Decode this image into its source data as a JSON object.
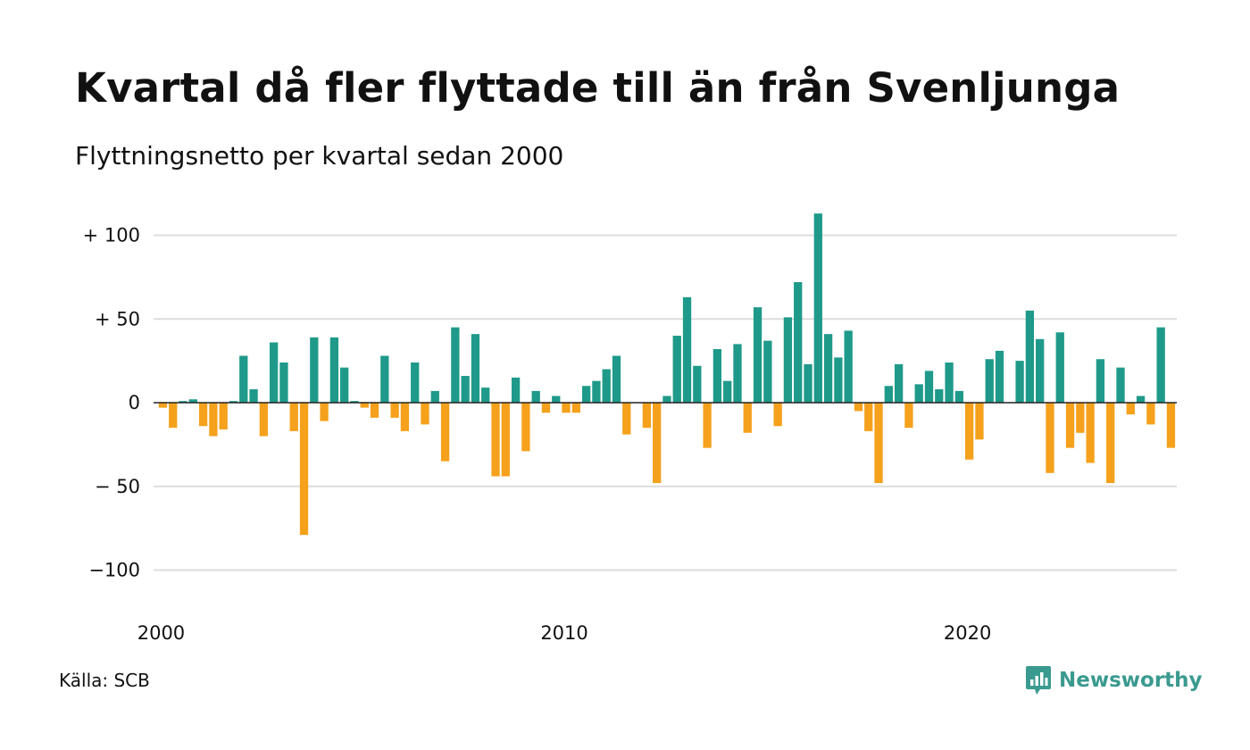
{
  "title": "Kvartal då fler flyttade till än från Svenljunga",
  "subtitle": "Flyttningsnetto per kvartal sedan 2000",
  "source": "Källa: SCB",
  "brand": "Newsworthy",
  "colors": {
    "positive": "#1f9a8a",
    "negative": "#f5a11c",
    "grid": "#dddddd",
    "zero": "#222222",
    "brand": "#3a9a8f"
  },
  "chart_data": {
    "type": "bar",
    "title": "Kvartal då fler flyttade till än från Svenljunga",
    "subtitle": "Flyttningsnetto per kvartal sedan 2000",
    "xlabel": "",
    "ylabel": "",
    "ylim": [
      -110,
      115
    ],
    "yticks": [
      100,
      50,
      0,
      -50,
      -100
    ],
    "ytick_labels": [
      "+ 100",
      "+  50",
      "0",
      "− 50",
      "−100"
    ],
    "xticks": [
      {
        "label": "2000",
        "index": 0
      },
      {
        "label": "2010",
        "index": 40
      },
      {
        "label": "2020",
        "index": 80
      }
    ],
    "grid": true,
    "legend": "none",
    "start": "2000 Q1",
    "frequency": "quarter",
    "values": [
      -3,
      -15,
      1,
      2,
      -14,
      -20,
      -16,
      1,
      28,
      8,
      -20,
      36,
      24,
      -17,
      -79,
      39,
      -11,
      39,
      21,
      1,
      -3,
      -9,
      28,
      -9,
      -17,
      24,
      -13,
      7,
      -35,
      45,
      16,
      41,
      9,
      -44,
      -44,
      15,
      -29,
      7,
      -6,
      4,
      -6,
      -6,
      10,
      13,
      20,
      28,
      -19,
      0,
      -15,
      -48,
      4,
      40,
      63,
      22,
      -27,
      32,
      13,
      35,
      -18,
      57,
      37,
      -14,
      51,
      72,
      23,
      113,
      41,
      27,
      43,
      -5,
      -17,
      -48,
      10,
      23,
      -15,
      11,
      19,
      8,
      24,
      7,
      -34,
      -22,
      26,
      31,
      0,
      25,
      55,
      38,
      -42,
      42,
      -27,
      -18,
      -36,
      26,
      -48,
      21,
      -7,
      4,
      -13,
      45,
      -27
    ]
  }
}
